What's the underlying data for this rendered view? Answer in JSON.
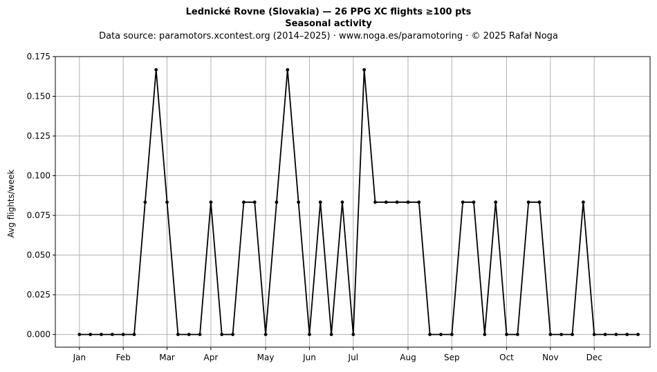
{
  "chart_data": {
    "type": "line",
    "title_line1": "Lednické Rovne (Slovakia)  —  26 PPG XC flights ≥100 pts",
    "title_line2": "Seasonal activity",
    "subtitle": "Data source: paramotors.xcontest.org (2014–2025)  ·  www.noga.es/paramotoring  ·  © 2025 Rafał Noga",
    "xlabel": "",
    "ylabel": "Avg flights/week",
    "ylim": [
      -0.008,
      0.175
    ],
    "yticks": [
      "0.000",
      "0.025",
      "0.050",
      "0.075",
      "0.100",
      "0.125",
      "0.150",
      "0.175"
    ],
    "ytick_values": [
      0,
      0.025,
      0.05,
      0.075,
      0.1,
      0.125,
      0.15,
      0.175
    ],
    "xlim": [
      -1.2,
      53.1
    ],
    "xticks": [
      "Jan",
      "Feb",
      "Mar",
      "Apr",
      "May",
      "Jun",
      "Jul",
      "Aug",
      "Sep",
      "Oct",
      "Nov",
      "Dec"
    ],
    "xtick_weeks": [
      1,
      5,
      9,
      13,
      18,
      22,
      26,
      31,
      35,
      40,
      44,
      48
    ],
    "grid": true,
    "series": [
      {
        "x": [
          1,
          2,
          3,
          4,
          5,
          6,
          7,
          8,
          9,
          10,
          11,
          12,
          13,
          14,
          15,
          16,
          17,
          18,
          19,
          20,
          21,
          22,
          23,
          24,
          25,
          26,
          27,
          28,
          29,
          30,
          31,
          32,
          33,
          34,
          35,
          36,
          37,
          38,
          39,
          40,
          41,
          42,
          43,
          44,
          45,
          46,
          47,
          48,
          49,
          50,
          51,
          52
        ],
        "values": [
          0,
          0,
          0,
          0,
          0,
          0,
          0.0833,
          0.1667,
          0.0833,
          0,
          0,
          0,
          0.0833,
          0,
          0,
          0.0833,
          0.0833,
          0,
          0.0833,
          0.1667,
          0.0833,
          0,
          0.0833,
          0,
          0.0833,
          0,
          0.1667,
          0.0833,
          0.0833,
          0.0833,
          0.0833,
          0.0833,
          0,
          0,
          0,
          0.0833,
          0.0833,
          0,
          0.0833,
          0,
          0,
          0.0833,
          0.0833,
          0,
          0,
          0,
          0.0833,
          0,
          0,
          0,
          0,
          0
        ]
      }
    ]
  }
}
